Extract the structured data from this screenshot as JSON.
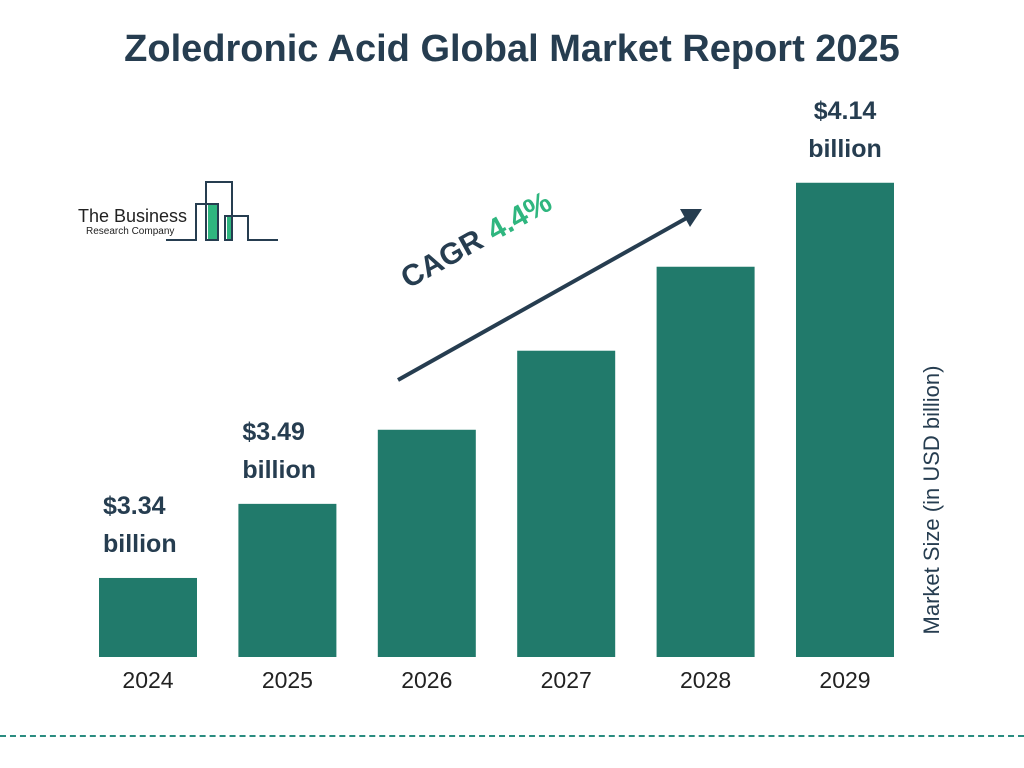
{
  "title": "Zoledronic Acid Global Market Report 2025",
  "logo": {
    "line1": "The Business",
    "line2": "Research Company"
  },
  "cagr": {
    "label": "CAGR",
    "value": "4.4%"
  },
  "colors": {
    "bar": "#217a6b",
    "text": "#263d50",
    "accent": "#2fb67f"
  },
  "chart_data": {
    "type": "bar",
    "title": "Zoledronic Acid Global Market Report 2025",
    "categories": [
      "2024",
      "2025",
      "2026",
      "2027",
      "2028",
      "2029"
    ],
    "values": [
      3.34,
      3.49,
      3.64,
      3.8,
      3.97,
      4.14
    ],
    "data_labels": [
      {
        "line1": "$3.34",
        "line2": "billion"
      },
      {
        "line1": "$3.49",
        "line2": "billion"
      },
      null,
      null,
      null,
      {
        "line1": "$4.14",
        "line2": "billion"
      }
    ],
    "xlabel": "",
    "ylabel": "Market Size (in USD billion)",
    "grid": false,
    "legend": "none"
  }
}
